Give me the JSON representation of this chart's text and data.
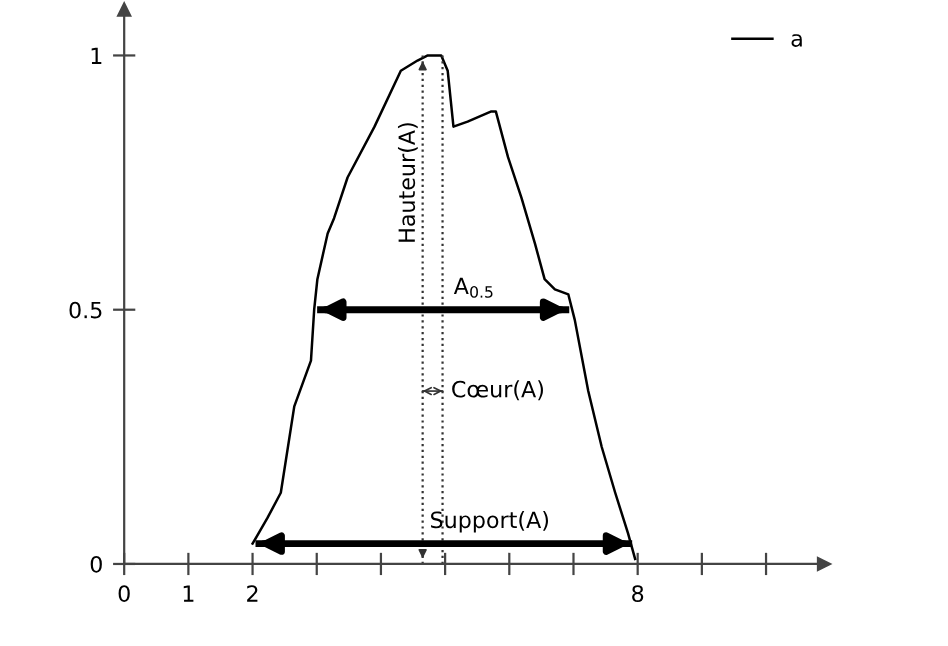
{
  "chart_data": {
    "type": "line",
    "x": [
      2.0,
      2.23,
      2.44,
      2.65,
      2.91,
      2.96,
      3.01,
      3.17,
      3.27,
      3.48,
      3.9,
      4.31,
      4.57,
      4.73,
      4.94,
      5.04,
      5.13,
      5.35,
      5.72,
      5.79,
      5.98,
      6.19,
      6.4,
      6.55,
      6.71,
      6.92,
      7.02,
      7.23,
      7.44,
      7.65,
      7.85,
      7.96
    ],
    "series": [
      {
        "name": "a",
        "color": "#000000",
        "values": [
          0.04,
          0.09,
          0.14,
          0.31,
          0.4,
          0.5,
          0.56,
          0.65,
          0.68,
          0.76,
          0.86,
          0.97,
          0.99,
          1.0,
          1.0,
          0.97,
          0.86,
          0.87,
          0.89,
          0.89,
          0.8,
          0.72,
          0.63,
          0.56,
          0.54,
          0.53,
          0.48,
          0.34,
          0.23,
          0.14,
          0.06,
          0.01
        ]
      }
    ],
    "xlim": [
      0,
      10.9
    ],
    "ylim": [
      0,
      1.09
    ],
    "xticks": [
      0,
      1,
      2,
      {
        "value": 3,
        "label": null
      },
      {
        "value": 4,
        "label": null
      },
      {
        "value": 5,
        "label": null
      },
      {
        "value": 6,
        "label": null
      },
      {
        "value": 7,
        "label": null
      },
      8,
      {
        "value": 9,
        "label": null
      },
      {
        "value": 10,
        "label": null
      }
    ],
    "yticks": [
      0,
      0.5,
      1
    ],
    "ref_lines": [
      {
        "axis": "x",
        "value": 4.65,
        "label": "Hauteur(A)",
        "line_style": "dotted"
      },
      {
        "axis": "x",
        "value": 4.96,
        "line_style": "dotted"
      },
      {
        "axis": "y",
        "value": 0.5,
        "label": "A$_{0.5}$"
      },
      {
        "axis": "y",
        "value": 0.34,
        "label": "Cœur(A)"
      },
      {
        "axis": "y",
        "value": 0.04,
        "label": "Support(A)"
      }
    ],
    "legend": "top right",
    "grid": false,
    "marker": "none",
    "line_style": "solid"
  }
}
